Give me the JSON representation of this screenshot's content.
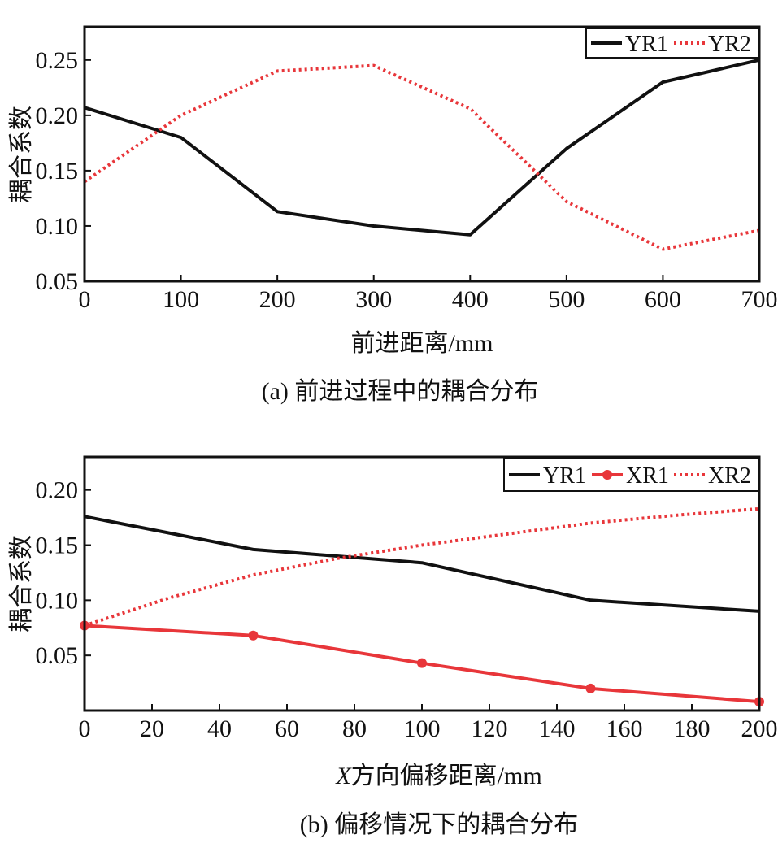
{
  "chart_data": [
    {
      "type": "line",
      "caption": "(a) 前进过程中的耦合分布",
      "xlabel": "前进距离/mm",
      "ylabel": "耦合系数",
      "xlim": [
        0,
        700
      ],
      "ylim": [
        0.05,
        0.28
      ],
      "xticks": [
        "0",
        "100",
        "200",
        "300",
        "400",
        "500",
        "600",
        "700"
      ],
      "yticks": [
        "0.05",
        "0.10",
        "0.15",
        "0.20",
        "0.25"
      ],
      "ytick_values": [
        0.05,
        0.1,
        0.15,
        0.2,
        0.25
      ],
      "legend_position": "top-right",
      "series": [
        {
          "name": "YR1",
          "color": "#111111",
          "style": "solid",
          "x": [
            0,
            100,
            200,
            300,
            400,
            500,
            600,
            700
          ],
          "y": [
            0.207,
            0.18,
            0.113,
            0.1,
            0.092,
            0.17,
            0.23,
            0.25
          ]
        },
        {
          "name": "YR2",
          "color": "#e8363a",
          "style": "dotted",
          "x": [
            0,
            100,
            200,
            300,
            400,
            500,
            600,
            700
          ],
          "y": [
            0.14,
            0.2,
            0.24,
            0.245,
            0.206,
            0.122,
            0.079,
            0.096
          ]
        }
      ]
    },
    {
      "type": "line",
      "caption": "(b) 偏移情况下的耦合分布",
      "xlabel_prefix": "X",
      "xlabel": "方向偏移距离/mm",
      "ylabel": "耦合系数",
      "xlim": [
        0,
        200
      ],
      "ylim": [
        0.0,
        0.23
      ],
      "xticks": [
        "0",
        "20",
        "40",
        "60",
        "80",
        "100",
        "120",
        "140",
        "160",
        "180",
        "200"
      ],
      "yticks": [
        "0.05",
        "0.10",
        "0.15",
        "0.20"
      ],
      "ytick_values": [
        0.05,
        0.1,
        0.15,
        0.2
      ],
      "legend_position": "top-right",
      "series": [
        {
          "name": "YR1",
          "color": "#111111",
          "style": "solid",
          "x": [
            0,
            50,
            100,
            150,
            200
          ],
          "y": [
            0.176,
            0.146,
            0.134,
            0.1,
            0.09
          ]
        },
        {
          "name": "XR1",
          "color": "#e8363a",
          "style": "solid-marker",
          "x": [
            0,
            50,
            100,
            150,
            200
          ],
          "y": [
            0.077,
            0.068,
            0.043,
            0.02,
            0.008
          ]
        },
        {
          "name": "XR2",
          "color": "#e8363a",
          "style": "dotted",
          "x": [
            0,
            25,
            50,
            75,
            100,
            125,
            150,
            175,
            200
          ],
          "y": [
            0.077,
            0.102,
            0.123,
            0.138,
            0.15,
            0.16,
            0.17,
            0.177,
            0.183
          ]
        }
      ]
    }
  ]
}
